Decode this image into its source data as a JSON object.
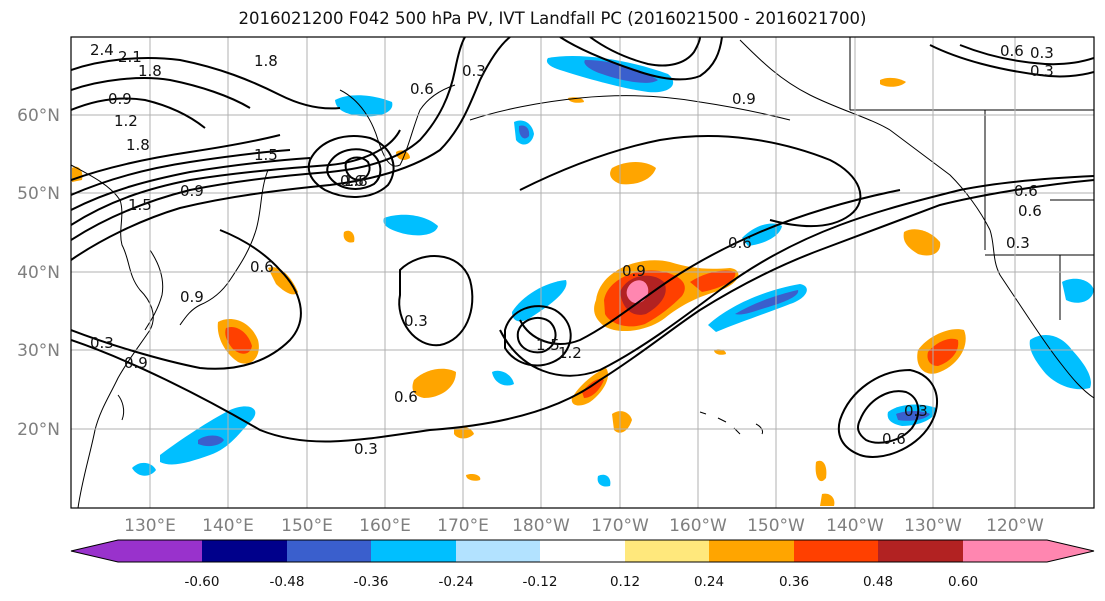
{
  "title": "2016021200 F042 500 hPa PV, IVT Landfall PC (2016021500 - 2016021700)",
  "lon_labels": [
    "130°E",
    "140°E",
    "150°E",
    "160°E",
    "170°E",
    "180°W",
    "170°W",
    "160°W",
    "150°W",
    "140°W",
    "130°W",
    "120°W"
  ],
  "lat_labels": [
    "60°N",
    "50°N",
    "40°N",
    "30°N",
    "20°N"
  ],
  "colorbar": {
    "colors": [
      "#9932cc",
      "#00008b",
      "#3a5fcd",
      "#00bfff",
      "#b2e2ff",
      "#ffffff",
      "#ffe87c",
      "#ffa500",
      "#ff4000",
      "#b22222",
      "#ff86b0"
    ],
    "tick_labels": [
      "-0.60",
      "-0.48",
      "-0.36",
      "-0.24",
      "-0.12",
      "0.12",
      "0.24",
      "0.36",
      "0.48",
      "0.60"
    ]
  },
  "contour_labels": [
    "2.4",
    "2.1",
    "1.8",
    "1.8",
    "0.9",
    "1.2",
    "1.8",
    "1.5",
    "1.5",
    "1.8",
    "0.9",
    "0.6",
    "0.3",
    "0.6",
    "0.9",
    "0.3",
    "0.9",
    "0.6",
    "0.3",
    "1.2",
    "1.5",
    "0.3",
    "0.6",
    "0.6",
    "0.3",
    "0.9",
    "0.6",
    "0.9",
    "0.3",
    "0.6",
    "0.3",
    "0.6",
    "0.6",
    "0.3"
  ]
}
